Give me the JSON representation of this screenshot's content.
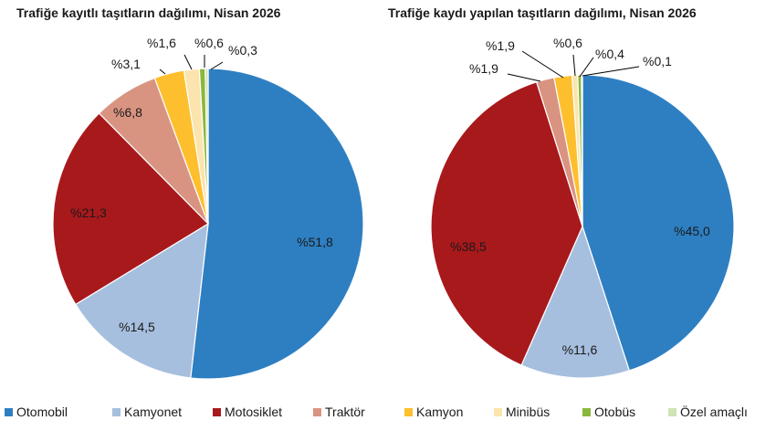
{
  "chart_data": [
    {
      "type": "pie",
      "title": "Trafiğe kayıtlı taşıtların dağılımı, Nisan 2026",
      "categories": [
        "Otomobil",
        "Kamyonet",
        "Motosiklet",
        "Traktör",
        "Kamyon",
        "Minibüs",
        "Otobüs",
        "Özel amaçlı"
      ],
      "values": [
        51.8,
        14.5,
        21.3,
        6.8,
        3.1,
        1.6,
        0.6,
        0.3
      ],
      "labels": [
        "%51,8",
        "%14,5",
        "%21,3",
        "%6,8",
        "%3,1",
        "%1,6",
        "%0,6",
        "%0,3"
      ]
    },
    {
      "type": "pie",
      "title": "Trafiğe kaydı yapılan taşıtların dağılımı, Nisan 2026",
      "categories": [
        "Otomobil",
        "Kamyonet",
        "Motosiklet",
        "Traktör",
        "Kamyon",
        "Minibüs",
        "Otobüs",
        "Özel amaçlı"
      ],
      "values": [
        45.0,
        11.6,
        38.5,
        1.9,
        1.9,
        0.6,
        0.4,
        0.1
      ],
      "labels": [
        "%45,0",
        "%11,6",
        "%38,5",
        "%1,9",
        "%1,9",
        "%0,6",
        "%0,4",
        "%0,1"
      ]
    }
  ],
  "legend": {
    "position": "bottom",
    "items": [
      {
        "label": "Otomobil",
        "color": "#2E7FC2"
      },
      {
        "label": "Kamyonet",
        "color": "#A7BFDE"
      },
      {
        "label": "Motosiklet",
        "color": "#A8191C"
      },
      {
        "label": "Traktör",
        "color": "#D99481"
      },
      {
        "label": "Kamyon",
        "color": "#FDBF2D"
      },
      {
        "label": "Minibüs",
        "color": "#FCE4AE"
      },
      {
        "label": "Otobüs",
        "color": "#8BB73B"
      },
      {
        "label": "Özel amaçlı",
        "color": "#CFE3B3"
      }
    ]
  }
}
